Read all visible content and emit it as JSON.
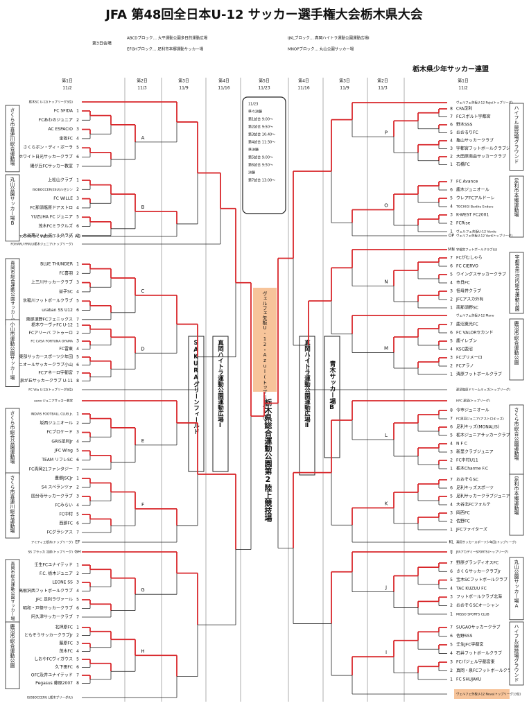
{
  "header": {
    "title": "JFA 第48回全日本U-12 サッカー選手権大会栃木県大会",
    "organizer": "栃木県少年サッカー連盟"
  },
  "venues_day3": {
    "label": "第3日会場",
    "items": [
      "ABCDブロック… 大平運動公園多目的運動広場",
      "EFGHブロック… 足利市本郷運動サッカー場",
      "IJKLブロック… 真岡ハイトラ運動公園運動広場Ⅰ",
      "MNOPブロック… 丸山公園サッカー場"
    ]
  },
  "rounds": {
    "left": [
      {
        "day": "第1日",
        "date": "11/2"
      },
      {
        "day": "第2日",
        "date": "11/3"
      },
      {
        "day": "第3日",
        "date": "11/9"
      },
      {
        "day": "第4日",
        "date": "11/16"
      }
    ],
    "center": {
      "day": "第5日",
      "date": "11/23"
    },
    "right": [
      {
        "day": "第4日",
        "date": "11/16"
      },
      {
        "day": "第3日",
        "date": "11/9"
      },
      {
        "day": "第2日",
        "date": "11/3"
      },
      {
        "day": "第1日",
        "date": "11/2"
      }
    ]
  },
  "left_blocks": [
    {
      "label": "A",
      "venue": "さくら市喜連川総合運動場",
      "teams": [
        {
          "no": 1,
          "name": "FC SFIDA"
        },
        {
          "no": 2,
          "name": "FCあわのジュニア"
        },
        {
          "no": 3,
          "name": "AC ESPACIO"
        },
        {
          "no": 4,
          "name": "金坂FC"
        },
        {
          "no": 5,
          "name": "さくらボン・ディ・ボーラ"
        },
        {
          "no": 6,
          "name": "ホワイト日光サッカークラブ"
        },
        {
          "no": 7,
          "name": "陽が丘FCサッカー教室"
        }
      ]
    },
    {
      "label": "B",
      "venue": "丸山公園サッカー場B",
      "teams": [
        {
          "no": 1,
          "name": "上松山クラブ"
        },
        {
          "no": 2,
          "name": "ISOBOCCER(ESU)ルゼジン"
        },
        {
          "no": 3,
          "name": "FC WILLE"
        },
        {
          "no": 4,
          "name": "FC那須塩原ドアストロ"
        },
        {
          "no": 5,
          "name": "YUZUHA FC ジュニア"
        },
        {
          "no": 6,
          "name": "茂木FCミラクルズ"
        },
        {
          "no": 7,
          "name": "大谷東フットボールクラブ"
        }
      ]
    },
    {
      "label": "C",
      "venue": "真岡市総合運動公園サッカー場",
      "teams": [
        {
          "no": 1,
          "name": "BLUE THUNDER"
        },
        {
          "no": 2,
          "name": "FC喜羽"
        },
        {
          "no": 3,
          "name": "上三川サッカークラブ"
        },
        {
          "no": 4,
          "name": "益子SC"
        },
        {
          "no": 5,
          "name": "氷稲川フットボールクラブ"
        },
        {
          "no": 6,
          "name": "uraban SS U12"
        },
        {
          "no": 7,
          "name": "東那須野FCフェニックス"
        }
      ]
    },
    {
      "label": "D",
      "venue": "小山市運動公園サッカー場",
      "teams": [
        {
          "no": 1,
          "name": "栃木ウーヴァFC U-12"
        },
        {
          "no": 2,
          "name": "FCアリーバ フトゥーロ"
        },
        {
          "no": 3,
          "name": "FC CASA FORTUNA OYAMA"
        },
        {
          "no": 4,
          "name": "FC雷東"
        },
        {
          "no": 5,
          "name": "鹿沼東部サッカースポーツ少年団"
        },
        {
          "no": 6,
          "name": "ジュニオールサッカークラブ小山"
        },
        {
          "no": 7,
          "name": "FCアネーロ宇都宮"
        },
        {
          "no": 8,
          "name": "泉が丘サッカークラブ U-11"
        }
      ]
    },
    {
      "label": "E",
      "venue": "さくら市総合公園運動場",
      "teams": [
        {
          "no": 1,
          "name": "INDIAS FOOTBALL CLUB Jr."
        },
        {
          "no": 2,
          "name": "坂西ジュニオール"
        },
        {
          "no": 3,
          "name": "FCブロケード"
        },
        {
          "no": 4,
          "name": "GRIS足利Jr"
        },
        {
          "no": 5,
          "name": "JFC Wing"
        },
        {
          "no": 6,
          "name": "TEAM リフレSC"
        },
        {
          "no": 7,
          "name": "FC真岡21ファンタジー"
        }
      ]
    },
    {
      "label": "F",
      "venue": "さくら市喜連川総合運動場",
      "teams": [
        {
          "no": 1,
          "name": "豊郷JSCJr"
        },
        {
          "no": 2,
          "name": "S4 スペランツァ"
        },
        {
          "no": 3,
          "name": "国分寺サッカークラブ"
        },
        {
          "no": 4,
          "name": "FCみらい"
        },
        {
          "no": 5,
          "name": "FC中村"
        },
        {
          "no": 6,
          "name": "西那FC"
        },
        {
          "no": 7,
          "name": "FCグラシアス"
        }
      ]
    },
    {
      "label": "G",
      "venue": "真岡市総合運動公園サッカー場",
      "teams": [
        {
          "no": 1,
          "name": "壬生FCユナイテッド"
        },
        {
          "no": 2,
          "name": "F.C. 栃木ジュニア"
        },
        {
          "no": 3,
          "name": "LEONE SS"
        },
        {
          "no": 4,
          "name": "高根沢西フットボールクラブ"
        },
        {
          "no": 5,
          "name": "JFC 足利ラヴァール"
        },
        {
          "no": 6,
          "name": "昭和・戸祭サッカークラブ"
        },
        {
          "no": 7,
          "name": "阿久津サッカークラブ"
        }
      ]
    },
    {
      "label": "H",
      "venue": "鹿沼市総合運動公園",
      "teams": [
        {
          "no": 1,
          "name": "北押原FC"
        },
        {
          "no": 2,
          "name": "ともぞうサッカークラブJr"
        },
        {
          "no": 3,
          "name": "藤原FC"
        },
        {
          "no": 4,
          "name": "茂木FC"
        },
        {
          "no": 5,
          "name": "しおやFCヴィガウス"
        },
        {
          "no": 6,
          "name": "久下田FC"
        },
        {
          "no": 7,
          "name": "OFC及井ユナイテッド"
        },
        {
          "no": 8,
          "name": "Pegasus 藤原2007"
        }
      ]
    }
  ],
  "left_seeds": [
    {
      "name": "栃木SC U-12(トップリーグ3位)"
    },
    {
      "code": "AB",
      "name": "TOCHIGI SFC 宇都宮市(トップリーグ)"
    },
    {
      "name": "FOHARU FRIULI栃木ジュニア(トップリーグ)"
    },
    {
      "name": "FC Vila U-12(トップリーグ8位)"
    },
    {
      "name": "ueno ジュニアサッカー教室"
    },
    {
      "code": "EF",
      "name": "アミティエ栃木(トップリーグ)"
    },
    {
      "code": "GH",
      "name": "SS ブラッカ 北部(トップリーグ)"
    },
    {
      "name": "ISOBOCCERU L栃木ブリーダ(U)"
    }
  ],
  "right_blocks": [
    {
      "label": "P",
      "venue": "ハイフル競技場グラウンド",
      "teams": [
        {
          "no": 8,
          "name": "CFA足利"
        },
        {
          "no": 7,
          "name": "FCスポルト宇都宮"
        },
        {
          "no": 6,
          "name": "野木SSS"
        },
        {
          "no": 5,
          "name": "おおるりFC"
        },
        {
          "no": 4,
          "name": "亀山サッカークラブ"
        },
        {
          "no": 3,
          "name": "宇都宮フットボールクラブジュニア"
        },
        {
          "no": 2,
          "name": "大田原南由サッカークラブ"
        },
        {
          "no": 1,
          "name": "石橋FC"
        }
      ]
    },
    {
      "label": "O",
      "venue": "足利市本郷運動場",
      "teams": [
        {
          "no": 7,
          "name": "FC Avance"
        },
        {
          "no": 6,
          "name": "鹿木ジュニオール"
        },
        {
          "no": 5,
          "name": "ウレアFCアルドーレ"
        },
        {
          "no": 4,
          "name": "TOCHIGI Berthe Enders"
        },
        {
          "no": 3,
          "name": "K-WEST FC2001"
        },
        {
          "no": 2,
          "name": "FCRise"
        },
        {
          "no": 1,
          "name": "ヴェルフェ矢板U-12 Verde"
        }
      ]
    },
    {
      "label": "N",
      "venue": "宇都宮市河内総合運動公園",
      "teams": [
        {
          "no": 7,
          "name": "FCがむしゃら"
        },
        {
          "no": 6,
          "name": "FC CIERVO"
        },
        {
          "no": 5,
          "name": "ウイングスサッカークラブ"
        },
        {
          "no": 4,
          "name": "市貝FC"
        },
        {
          "no": 3,
          "name": "祖母井クラブ"
        },
        {
          "no": 2,
          "name": "JFCアスカ外有"
        },
        {
          "no": 1,
          "name": "南那須野SC"
        }
      ]
    },
    {
      "label": "M",
      "venue": "鹿沼市総合運動公園",
      "teams": [
        {
          "no": 7,
          "name": "鹿沼東光FC"
        },
        {
          "no": 6,
          "name": "FC VALORセカンド"
        },
        {
          "no": 5,
          "name": "鹿イレブン"
        },
        {
          "no": 4,
          "name": "KSC鹿沼"
        },
        {
          "no": 3,
          "name": "FCプリメーロ"
        },
        {
          "no": 2,
          "name": "FCアラノ"
        },
        {
          "no": 1,
          "name": "清原フットボールクラブ"
        }
      ]
    },
    {
      "label": "L",
      "venue": "さくら市総合公園運動場",
      "teams": [
        {
          "no": 8,
          "name": "今市ジュニオール"
        },
        {
          "no": 7,
          "name": "FC黒羽ジュニア(アストロキッズ)"
        },
        {
          "no": 6,
          "name": "足利キッズ(MONALIS)"
        },
        {
          "no": 5,
          "name": "栃木ジュニアサッカークラブ"
        },
        {
          "no": 4,
          "name": "N F C"
        },
        {
          "no": 3,
          "name": "新里クラブジュニア"
        },
        {
          "no": 2,
          "name": "FC中村U11"
        },
        {
          "no": 1,
          "name": "栃木Charme F.C"
        }
      ]
    },
    {
      "label": "K",
      "venue": "足利市本郷運動場",
      "teams": [
        {
          "no": 7,
          "name": "おおぞらSC"
        },
        {
          "no": 6,
          "name": "足利キッズスポーツ"
        },
        {
          "no": 5,
          "name": "足利サッカークラブジュニア"
        },
        {
          "no": 4,
          "name": "大谷北FCフォルテ"
        },
        {
          "no": 3,
          "name": "岡西FC"
        },
        {
          "no": 2,
          "name": "佐野FC"
        },
        {
          "no": 1,
          "name": "JFCファイターズ"
        }
      ]
    },
    {
      "label": "J",
      "venue": "丸山公園サッカー場A",
      "teams": [
        {
          "no": 7,
          "name": "野原グランディオスFC"
        },
        {
          "no": 6,
          "name": "さくらサッカークラブJr"
        },
        {
          "no": 5,
          "name": "宝木SCフットボールクラブ"
        },
        {
          "no": 4,
          "name": "TAC KUZUU FC"
        },
        {
          "no": 3,
          "name": "フットボールクラブ北海"
        },
        {
          "no": 2,
          "name": "おおぞらSCオーシャン"
        },
        {
          "no": 1,
          "name": "MISSO SPORTS CLUB"
        }
      ]
    },
    {
      "label": "I",
      "venue": "ハイフル競技場グラウンド",
      "teams": [
        {
          "no": 7,
          "name": "SUGAOサッカークラブ"
        },
        {
          "no": 6,
          "name": "佐野SSS"
        },
        {
          "no": 5,
          "name": "壬生JFC宇都宮"
        },
        {
          "no": 4,
          "name": "石井フットボールクラブ"
        },
        {
          "no": 3,
          "name": "FCパジェル宇都宮東"
        },
        {
          "no": 2,
          "name": "真岡・泉FCフットボールクラブ"
        },
        {
          "no": 1,
          "name": "FC SHUJAKU"
        }
      ]
    }
  ],
  "right_seeds": [
    {
      "name": "ヴェルフェ矢板U-12 Rojo(トップリーグ)"
    },
    {
      "code": "OP",
      "name": "ヴェルフェ矢板U-12 Vert(トップリーグ)"
    },
    {
      "code": "MN",
      "name": "宇都宮フットボールクラブ(U)"
    },
    {
      "name": "ヴェルフェ矢板U-12 Mano"
    },
    {
      "name": "那須塩原ドリームキッズ(トップリーグ)"
    },
    {
      "name": "HFC 那須(トップリーグ)"
    },
    {
      "code": "KL",
      "name": "真岡サッカースポーツ少年団(トップリーグ)"
    },
    {
      "code": "IJ",
      "name": "JFAアカデミーSPORTS(トップリーグ)"
    },
    {
      "name": "ヴェルフェ矢板U-12 Nova(トップリーグ13位)"
    }
  ],
  "center": {
    "schedule": [
      "11/23",
      "準々決勝",
      "第1試合 9:00〜",
      "第2試合 9:50〜",
      "第3試合 10:40〜",
      "第4試合 11:30〜",
      "準決勝",
      "第5試合 9:00〜",
      "第6試合 9:50〜",
      "決勝",
      "第7試合 13:00〜"
    ],
    "top_seed": "ヴェルフェ矢板U-12・Azul(トップリーグ1位)",
    "venues": [
      "SAKURAグリーンフィールド",
      "真岡ハイトラ運動公園運動広場Ⅰ",
      "栃木県総合運動公園第2陸上競技場",
      "真岡ハイトラ運動公園運動広場Ⅱ",
      "青木サッカー場B"
    ]
  }
}
